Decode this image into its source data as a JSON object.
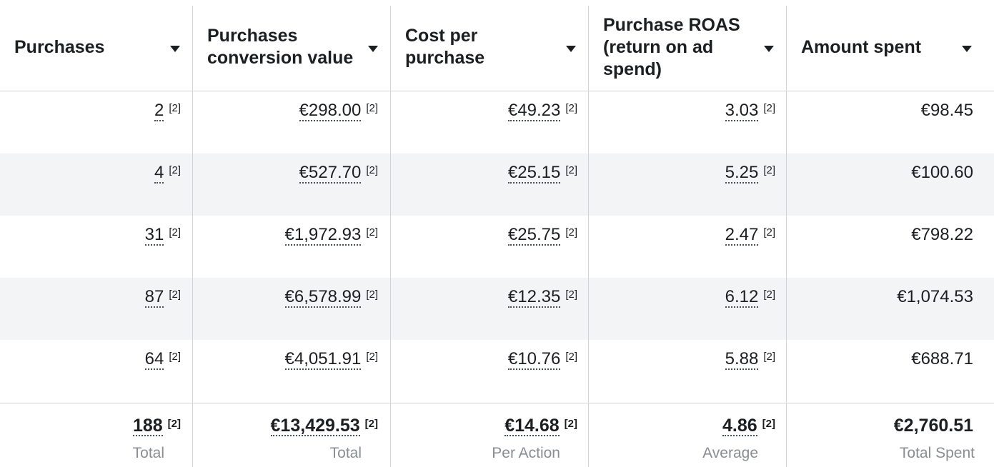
{
  "columns": [
    {
      "label": "Purchases"
    },
    {
      "label": "Purchases conversion value"
    },
    {
      "label": "Cost per purchase"
    },
    {
      "label": "Purchase ROAS (return on ad spend)"
    },
    {
      "label": "Amount spent"
    }
  ],
  "footnote": "[2]",
  "rows": [
    {
      "purchases": "2",
      "conv_value": "€298.00",
      "cost_per": "€49.23",
      "roas": "3.03",
      "spent": "€98.45"
    },
    {
      "purchases": "4",
      "conv_value": "€527.70",
      "cost_per": "€25.15",
      "roas": "5.25",
      "spent": "€100.60"
    },
    {
      "purchases": "31",
      "conv_value": "€1,972.93",
      "cost_per": "€25.75",
      "roas": "2.47",
      "spent": "€798.22"
    },
    {
      "purchases": "87",
      "conv_value": "€6,578.99",
      "cost_per": "€12.35",
      "roas": "6.12",
      "spent": "€1,074.53"
    },
    {
      "purchases": "64",
      "conv_value": "€4,051.91",
      "cost_per": "€10.76",
      "roas": "5.88",
      "spent": "€688.71"
    }
  ],
  "totals": {
    "purchases": {
      "value": "188",
      "caption": "Total"
    },
    "conv_value": {
      "value": "€13,429.53",
      "caption": "Total"
    },
    "cost_per": {
      "value": "€14.68",
      "caption": "Per Action"
    },
    "roas": {
      "value": "4.86",
      "caption": "Average"
    },
    "spent": {
      "value": "€2,760.51",
      "caption": "Total Spent"
    }
  }
}
